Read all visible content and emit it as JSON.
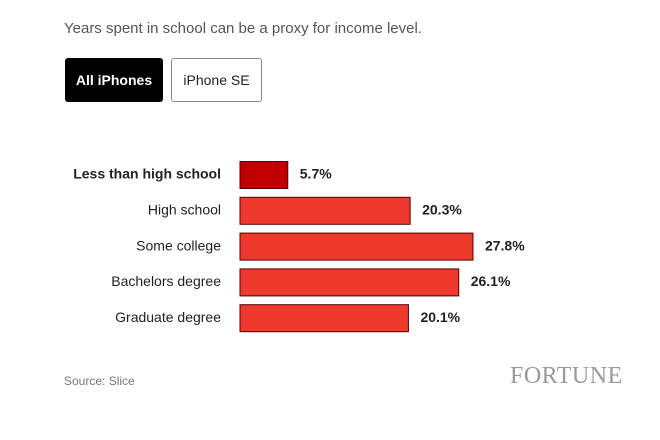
{
  "subtitle": "Years spent in school can be a proxy for income level.",
  "tabs": [
    "All iPhones",
    "iPhone SE"
  ],
  "chart_data": {
    "type": "bar",
    "orientation": "horizontal",
    "categories": [
      "Less than high school",
      "High school",
      "Some college",
      "Bachelors degree",
      "Graduate degree"
    ],
    "values": [
      5.7,
      20.3,
      27.8,
      26.1,
      20.1
    ],
    "value_labels": [
      "5.7%",
      "20.3%",
      "27.8%",
      "26.1%",
      "20.1%"
    ],
    "colors": [
      "#c00000",
      "#ee3a2c",
      "#ee3a2c",
      "#ee3a2c",
      "#ee3a2c"
    ],
    "highlight": 0
  },
  "source": "Source: Slice",
  "logo": "FORTUNE"
}
